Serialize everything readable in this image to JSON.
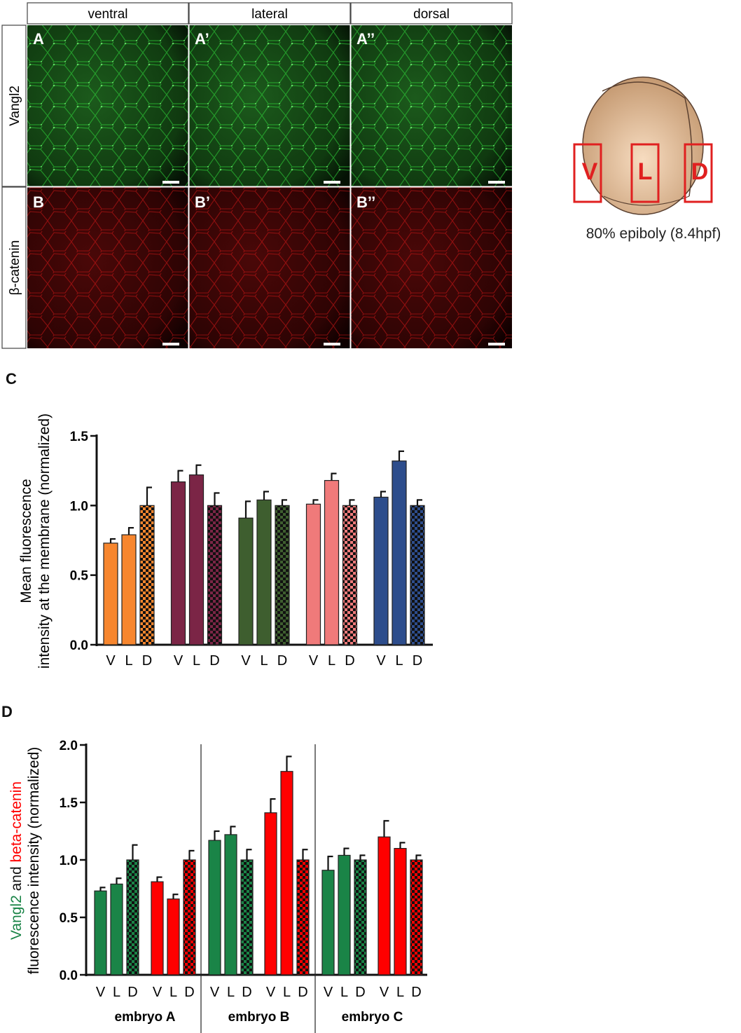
{
  "columns": [
    "ventral",
    "lateral",
    "dorsal"
  ],
  "rows": [
    "Vangl2",
    "β-catenin"
  ],
  "panel_letters": [
    "A",
    "A’",
    "A’’",
    "B",
    "B’",
    "B’’"
  ],
  "colors": {
    "orange": "#f7862e",
    "maroon": "#7b2546",
    "olive": "#3e5e2f",
    "salmon": "#f07a7a",
    "navy": "#2d4d8c",
    "green": "#1a8447",
    "red": "#ff0000",
    "green_micro": "#2fd63a",
    "red_micro": "#e01818"
  },
  "schematic": {
    "caption": "80% epiboly (8.4hpf)",
    "box_labels": [
      "V",
      "L",
      "D"
    ]
  },
  "panel_labels": {
    "c": "C",
    "d": "D"
  },
  "chart_data": [
    {
      "type": "bar",
      "panel": "C",
      "ylabel_lines": [
        "Mean fluorescence",
        "intensity at the membrane (normalized)"
      ],
      "ylim": [
        0,
        1.5
      ],
      "yticks": [
        "0.0",
        "0.5",
        "1.0",
        "1.5"
      ],
      "ytick_values": [
        0,
        0.5,
        1.0,
        1.5
      ],
      "categories": [
        "V",
        "L",
        "D"
      ],
      "groups": [
        {
          "color": "orange",
          "values": [
            0.73,
            0.79,
            1.0
          ],
          "errors": [
            0.03,
            0.05,
            0.13
          ]
        },
        {
          "color": "maroon",
          "values": [
            1.17,
            1.22,
            1.0
          ],
          "errors": [
            0.08,
            0.07,
            0.09
          ]
        },
        {
          "color": "olive",
          "values": [
            0.91,
            1.04,
            1.0
          ],
          "errors": [
            0.12,
            0.06,
            0.04
          ]
        },
        {
          "color": "salmon",
          "values": [
            1.01,
            1.18,
            1.0
          ],
          "errors": [
            0.03,
            0.05,
            0.04
          ]
        },
        {
          "color": "navy",
          "values": [
            1.06,
            1.32,
            1.0
          ],
          "errors": [
            0.04,
            0.07,
            0.04
          ]
        }
      ]
    },
    {
      "type": "bar",
      "panel": "D",
      "ylabel_parts": [
        "Vangl2",
        " and ",
        "beta-catenin"
      ],
      "ylabel_line2": "fluorescence intensity (normalized)",
      "ylim": [
        0,
        2.0
      ],
      "yticks": [
        "0.0",
        "0.5",
        "1.0",
        "1.5",
        "2.0"
      ],
      "ytick_values": [
        0,
        0.5,
        1.0,
        1.5,
        2.0
      ],
      "categories": [
        "V",
        "L",
        "D"
      ],
      "embryos": [
        {
          "label": "embryo A",
          "vangl2": {
            "values": [
              0.73,
              0.79,
              1.0
            ],
            "errors": [
              0.03,
              0.05,
              0.13
            ]
          },
          "beta_catenin": {
            "values": [
              0.81,
              0.66,
              1.0
            ],
            "errors": [
              0.04,
              0.04,
              0.08
            ]
          }
        },
        {
          "label": "embryo B",
          "vangl2": {
            "values": [
              1.17,
              1.22,
              1.0
            ],
            "errors": [
              0.08,
              0.07,
              0.09
            ]
          },
          "beta_catenin": {
            "values": [
              1.41,
              1.77,
              1.0
            ],
            "errors": [
              0.12,
              0.13,
              0.09
            ]
          }
        },
        {
          "label": "embryo C",
          "vangl2": {
            "values": [
              0.91,
              1.04,
              1.0
            ],
            "errors": [
              0.12,
              0.06,
              0.04
            ]
          },
          "beta_catenin": {
            "values": [
              1.2,
              1.1,
              1.0
            ],
            "errors": [
              0.14,
              0.05,
              0.04
            ]
          }
        }
      ]
    }
  ]
}
